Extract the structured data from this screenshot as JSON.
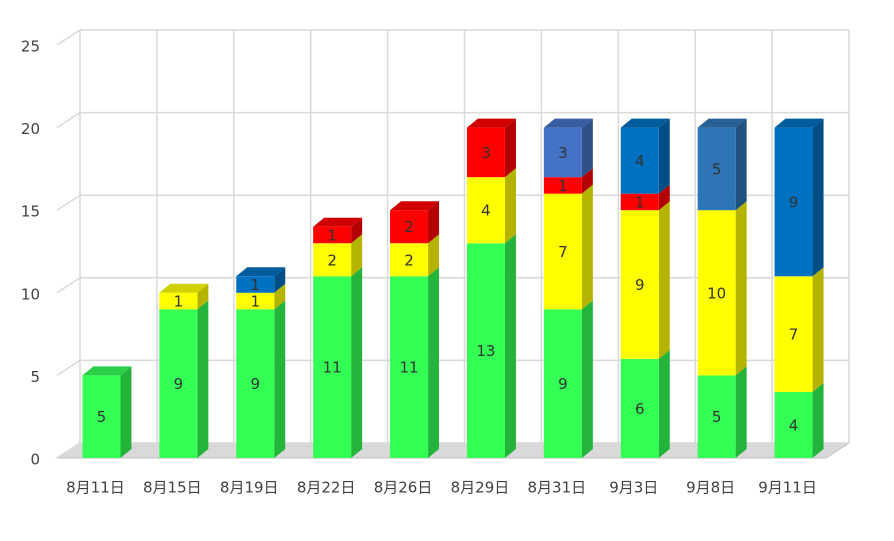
{
  "chart_data": {
    "type": "bar",
    "stacked": true,
    "categories": [
      "8月11日",
      "8月15日",
      "8月19日",
      "8月22日",
      "8月26日",
      "8月29日",
      "8月31日",
      "9月3日",
      "9月8日",
      "9月11日"
    ],
    "series": [
      {
        "color": "#33ff55",
        "values": [
          5,
          9,
          9,
          11,
          11,
          13,
          9,
          6,
          5,
          4
        ]
      },
      {
        "color": "#ffff00",
        "values": [
          null,
          1,
          1,
          2,
          2,
          4,
          7,
          9,
          10,
          7
        ]
      },
      {
        "color": "#ff0000",
        "values": [
          null,
          null,
          null,
          1,
          2,
          3,
          1,
          1,
          null,
          null
        ]
      },
      {
        "color": "#0070c0",
        "colors": [
          "#0070c0",
          "#0070c0",
          "#0070c0",
          "#0070c0",
          "#0070c0",
          "#0070c0",
          "#4472c4",
          "#0070c0",
          "#2e75b6",
          "#0070c0"
        ],
        "values": [
          null,
          null,
          1,
          null,
          null,
          null,
          3,
          4,
          5,
          9
        ]
      }
    ],
    "ylim": [
      0,
      25
    ],
    "yticks": [
      0,
      5,
      10,
      15,
      20,
      25
    ],
    "grid": true
  }
}
